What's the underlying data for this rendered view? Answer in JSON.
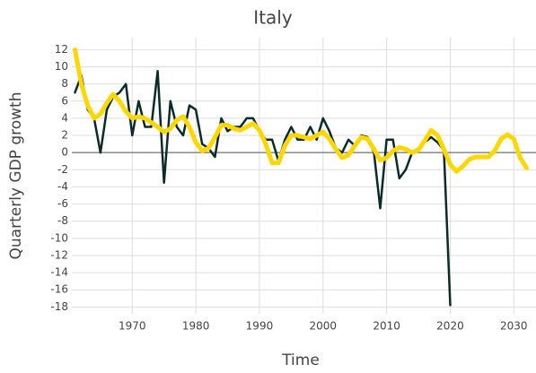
{
  "chart_data": {
    "type": "line",
    "title": "Italy",
    "xlabel": "Time",
    "ylabel": "Quarterly GDP growth",
    "x": [
      1961,
      1962,
      1963,
      1964,
      1965,
      1966,
      1967,
      1968,
      1969,
      1970,
      1971,
      1972,
      1973,
      1974,
      1975,
      1976,
      1977,
      1978,
      1979,
      1980,
      1981,
      1982,
      1983,
      1984,
      1985,
      1986,
      1987,
      1988,
      1989,
      1990,
      1991,
      1992,
      1993,
      1994,
      1995,
      1996,
      1997,
      1998,
      1999,
      2000,
      2001,
      2002,
      2003,
      2004,
      2005,
      2006,
      2007,
      2008,
      2009,
      2010,
      2011,
      2012,
      2013,
      2014,
      2015,
      2016,
      2017,
      2018,
      2019,
      2020,
      2021,
      2022,
      2023,
      2024,
      2025,
      2026,
      2027,
      2028,
      2029,
      2030,
      2031,
      2032
    ],
    "series": [
      {
        "color": "#0b2b2b",
        "values": [
          7,
          9,
          5,
          4,
          0,
          5,
          6.5,
          7,
          8,
          2,
          6,
          3,
          3,
          9.5,
          -3.5,
          6,
          3,
          2,
          5.5,
          5,
          1,
          0.5,
          -0.5,
          4,
          2.5,
          3,
          3,
          4,
          4,
          2.5,
          1.5,
          1.5,
          -1,
          1.5,
          3,
          1.5,
          1.5,
          3,
          1.5,
          4,
          2.5,
          0.5,
          0,
          1.5,
          0.8,
          2,
          1.8,
          0,
          -6.5,
          1.5,
          1.5,
          -3,
          -2,
          0,
          0.5,
          1.2,
          1.8,
          1.2,
          0.3,
          -17.8,
          null,
          null,
          null,
          null,
          null,
          null,
          null,
          null,
          null,
          null,
          null,
          null
        ]
      },
      {
        "color": "#ffd700",
        "values": [
          12,
          8,
          5.5,
          4,
          4.5,
          5.8,
          6.8,
          6,
          4.8,
          4,
          4.2,
          4,
          3.5,
          3,
          2.4,
          2.8,
          3.8,
          4.2,
          3,
          1.2,
          0.2,
          0.5,
          1.8,
          3.2,
          3.2,
          2.8,
          2.6,
          3,
          3.4,
          2.6,
          1,
          -1.2,
          -1.2,
          0.8,
          2,
          2,
          1.8,
          1.6,
          2,
          2.4,
          1.6,
          0.4,
          -0.6,
          -0.3,
          0.8,
          1.8,
          1.6,
          0.4,
          -0.9,
          -0.6,
          0.2,
          0.6,
          0.4,
          0,
          0.3,
          1.4,
          2.6,
          2,
          0.4,
          -1.4,
          -2.2,
          -1.6,
          -0.8,
          -0.5,
          -0.5,
          -0.5,
          0.2,
          1.6,
          2.1,
          1.6,
          -0.6,
          -1.8
        ]
      }
    ],
    "xlim": [
      1960.5,
      2032.5
    ],
    "xticks": [
      1970,
      1980,
      1990,
      2000,
      2010,
      2020,
      2030
    ],
    "ylim": [
      -18.8,
      13.4
    ],
    "yticks": [
      12,
      10,
      8,
      6,
      4,
      2,
      0,
      -2,
      -4,
      -6,
      -8,
      -10,
      -12,
      -14,
      -16,
      -18
    ],
    "grid": true
  }
}
